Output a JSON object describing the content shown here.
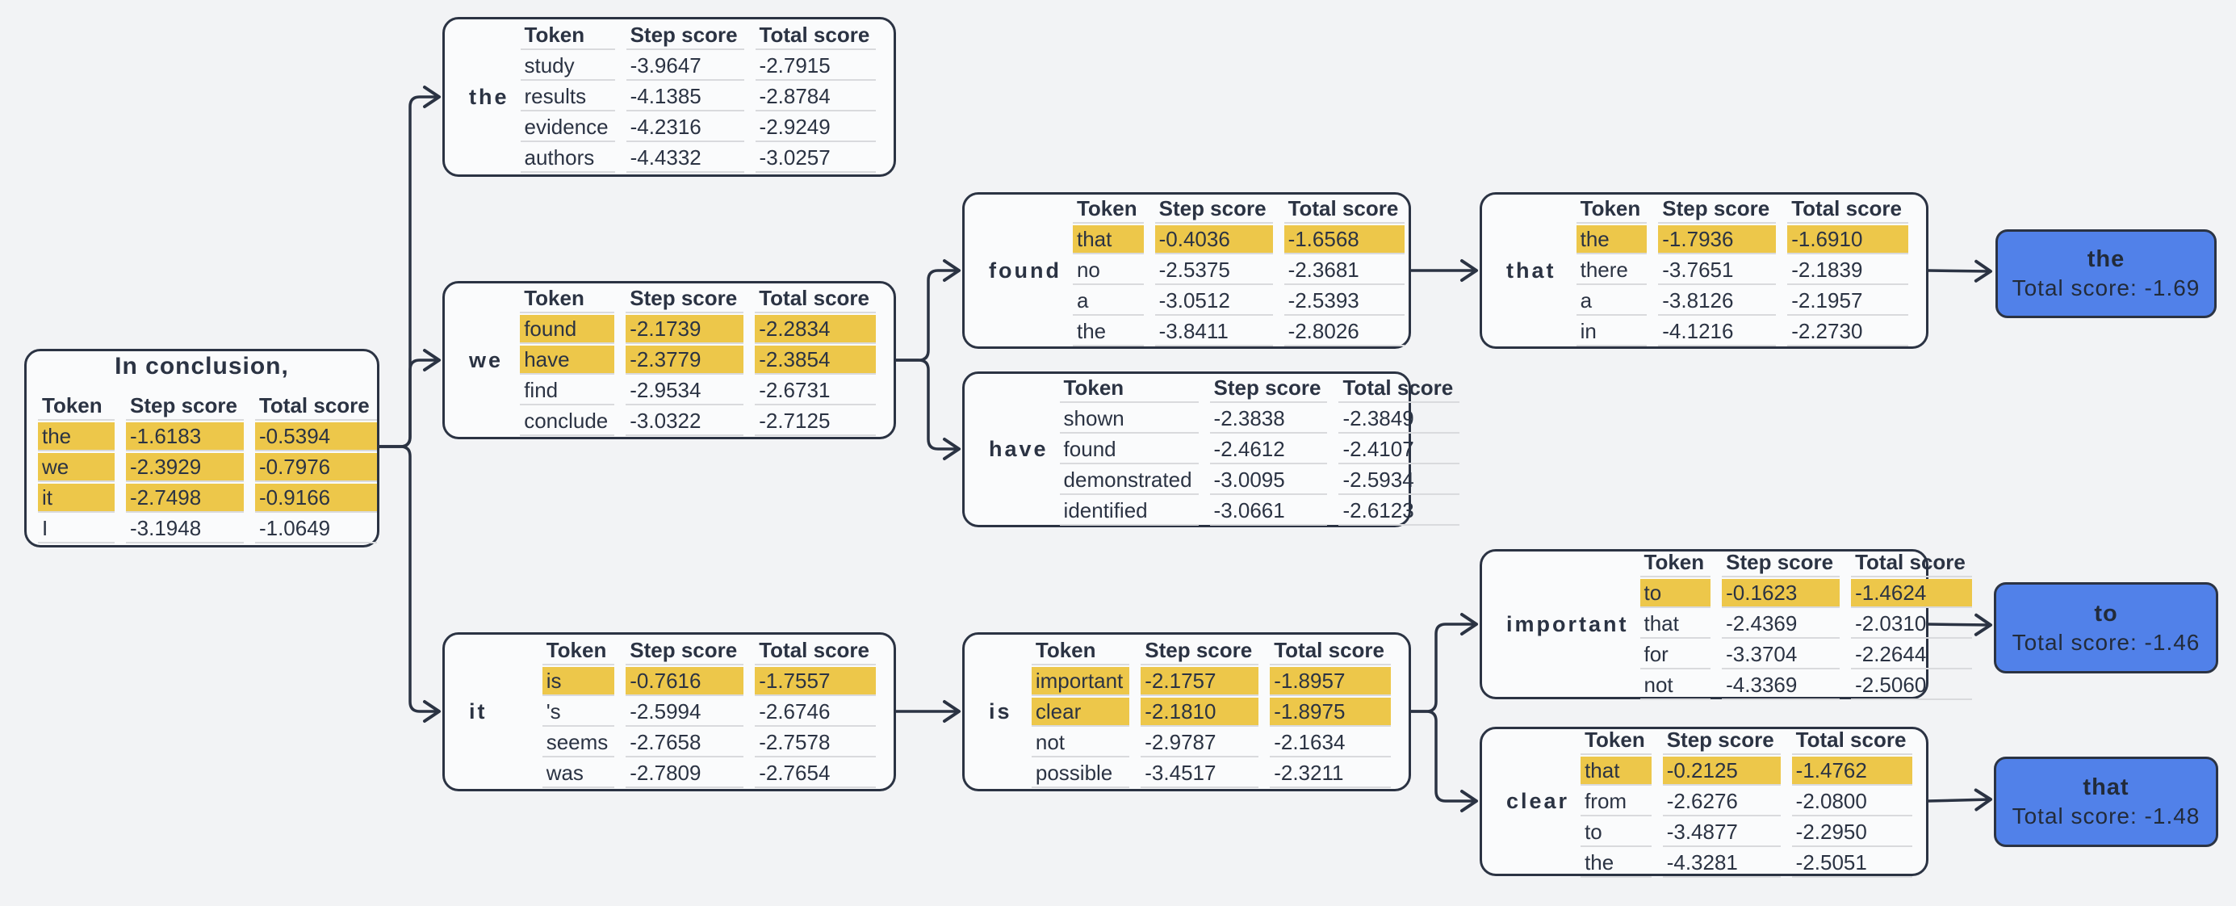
{
  "colors": {
    "background": "#f2f3f5",
    "box_background": "#fafbfc",
    "border_and_text": "#2b3343",
    "highlight_yellow": "#edc74a",
    "final_blue": "#5181e9",
    "row_separator": "#d9dadd"
  },
  "table_headers": [
    "Token",
    "Step score",
    "Total score"
  ],
  "root": {
    "title": "In conclusion,",
    "rows": [
      {
        "token": "the",
        "step": "-1.6183",
        "total": "-0.5394",
        "selected": true
      },
      {
        "token": "we",
        "step": "-2.3929",
        "total": "-0.7976",
        "selected": true
      },
      {
        "token": "it",
        "step": "-2.7498",
        "total": "-0.9166",
        "selected": true
      },
      {
        "token": "I",
        "step": "-3.1948",
        "total": "-1.0649",
        "selected": false
      }
    ]
  },
  "nodes": [
    {
      "label": "the",
      "rows": [
        {
          "token": "study",
          "step": "-3.9647",
          "total": "-2.7915",
          "selected": false
        },
        {
          "token": "results",
          "step": "-4.1385",
          "total": "-2.8784",
          "selected": false
        },
        {
          "token": "evidence",
          "step": "-4.2316",
          "total": "-2.9249",
          "selected": false
        },
        {
          "token": "authors",
          "step": "-4.4332",
          "total": "-3.0257",
          "selected": false
        }
      ]
    },
    {
      "label": "we",
      "rows": [
        {
          "token": "found",
          "step": "-2.1739",
          "total": "-2.2834",
          "selected": true
        },
        {
          "token": "have",
          "step": "-2.3779",
          "total": "-2.3854",
          "selected": true
        },
        {
          "token": "find",
          "step": "-2.9534",
          "total": "-2.6731",
          "selected": false
        },
        {
          "token": "conclude",
          "step": "-3.0322",
          "total": "-2.7125",
          "selected": false
        }
      ]
    },
    {
      "label": "it",
      "rows": [
        {
          "token": "is",
          "step": "-0.7616",
          "total": "-1.7557",
          "selected": true
        },
        {
          "token": "'s",
          "step": "-2.5994",
          "total": "-2.6746",
          "selected": false
        },
        {
          "token": "seems",
          "step": "-2.7658",
          "total": "-2.7578",
          "selected": false
        },
        {
          "token": "was",
          "step": "-2.7809",
          "total": "-2.7654",
          "selected": false
        }
      ]
    },
    {
      "label": "found",
      "rows": [
        {
          "token": "that",
          "step": "-0.4036",
          "total": "-1.6568",
          "selected": true
        },
        {
          "token": "no",
          "step": "-2.5375",
          "total": "-2.3681",
          "selected": false
        },
        {
          "token": "a",
          "step": "-3.0512",
          "total": "-2.5393",
          "selected": false
        },
        {
          "token": "the",
          "step": "-3.8411",
          "total": "-2.8026",
          "selected": false
        }
      ]
    },
    {
      "label": "have",
      "rows": [
        {
          "token": "shown",
          "step": "-2.3838",
          "total": "-2.3849",
          "selected": false
        },
        {
          "token": "found",
          "step": "-2.4612",
          "total": "-2.4107",
          "selected": false
        },
        {
          "token": "demonstrated",
          "step": "-3.0095",
          "total": "-2.5934",
          "selected": false
        },
        {
          "token": "identified",
          "step": "-3.0661",
          "total": "-2.6123",
          "selected": false
        }
      ]
    },
    {
      "label": "that",
      "rows": [
        {
          "token": "the",
          "step": "-1.7936",
          "total": "-1.6910",
          "selected": true
        },
        {
          "token": "there",
          "step": "-3.7651",
          "total": "-2.1839",
          "selected": false
        },
        {
          "token": "a",
          "step": "-3.8126",
          "total": "-2.1957",
          "selected": false
        },
        {
          "token": "in",
          "step": "-4.1216",
          "total": "-2.2730",
          "selected": false
        }
      ]
    },
    {
      "label": "is",
      "rows": [
        {
          "token": "important",
          "step": "-2.1757",
          "total": "-1.8957",
          "selected": true
        },
        {
          "token": "clear",
          "step": "-2.1810",
          "total": "-1.8975",
          "selected": true
        },
        {
          "token": "not",
          "step": "-2.9787",
          "total": "-2.1634",
          "selected": false
        },
        {
          "token": "possible",
          "step": "-3.4517",
          "total": "-2.3211",
          "selected": false
        }
      ]
    },
    {
      "label": "important",
      "rows": [
        {
          "token": "to",
          "step": "-0.1623",
          "total": "-1.4624",
          "selected": true
        },
        {
          "token": "that",
          "step": "-2.4369",
          "total": "-2.0310",
          "selected": false
        },
        {
          "token": "for",
          "step": "-3.3704",
          "total": "-2.2644",
          "selected": false
        },
        {
          "token": "not",
          "step": "-4.3369",
          "total": "-2.5060",
          "selected": false
        }
      ]
    },
    {
      "label": "clear",
      "rows": [
        {
          "token": "that",
          "step": "-0.2125",
          "total": "-1.4762",
          "selected": true
        },
        {
          "token": "from",
          "step": "-2.6276",
          "total": "-2.0800",
          "selected": false
        },
        {
          "token": "to",
          "step": "-3.4877",
          "total": "-2.2950",
          "selected": false
        },
        {
          "token": "the",
          "step": "-4.3281",
          "total": "-2.5051",
          "selected": false
        }
      ]
    }
  ],
  "finals": [
    {
      "token": "the",
      "score_label": "Total score: -1.69"
    },
    {
      "token": "to",
      "score_label": "Total score: -1.46"
    },
    {
      "token": "that",
      "score_label": "Total score: -1.48"
    }
  ]
}
